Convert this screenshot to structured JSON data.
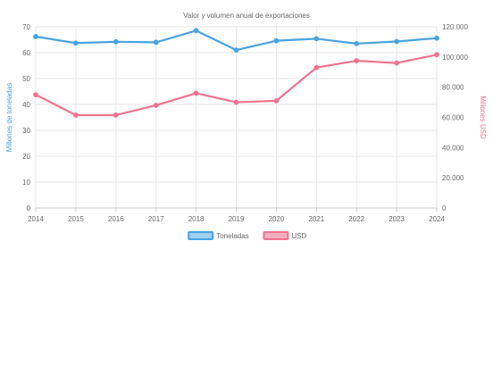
{
  "chart_data": {
    "type": "line",
    "title": "Valor y volumen anual de exportaciones",
    "x": [
      "2014",
      "2015",
      "2016",
      "2017",
      "2018",
      "2019",
      "2020",
      "2021",
      "2022",
      "2023",
      "2024"
    ],
    "series": [
      {
        "name": "Toneladas",
        "axis": "left",
        "color": "#4aa3df",
        "values": [
          66.2,
          63.7,
          64.2,
          64.0,
          68.5,
          61.0,
          64.6,
          65.4,
          63.5,
          64.3,
          65.6
        ]
      },
      {
        "name": "USD",
        "axis": "right",
        "color": "#f07390",
        "values": [
          75000,
          61500,
          61500,
          68000,
          76000,
          70000,
          71000,
          93000,
          97500,
          96000,
          101500
        ]
      }
    ],
    "y_left": {
      "label": "Millones de toneladas",
      "range": [
        0,
        70
      ],
      "ticks": [
        0,
        10,
        20,
        30,
        40,
        50,
        60,
        70
      ],
      "tick_labels": [
        "0",
        "10",
        "20",
        "30",
        "40",
        "50",
        "60",
        "70"
      ],
      "color": "#4aa3df"
    },
    "y_right": {
      "label": "Millones USD",
      "range": [
        0,
        120000
      ],
      "ticks": [
        0,
        20000,
        40000,
        60000,
        80000,
        100000,
        120000
      ],
      "tick_labels": [
        "0",
        "20.000",
        "40.000",
        "60.000",
        "80.000",
        "100.000",
        "120.000"
      ],
      "color": "#f07390"
    },
    "grid": true,
    "legend": {
      "position": "bottom",
      "items": [
        {
          "label": "Toneladas",
          "color": "#4aa3df",
          "fill": "#9fd0f0"
        },
        {
          "label": "USD",
          "color": "#f07390",
          "fill": "#f7aec0"
        }
      ]
    }
  }
}
